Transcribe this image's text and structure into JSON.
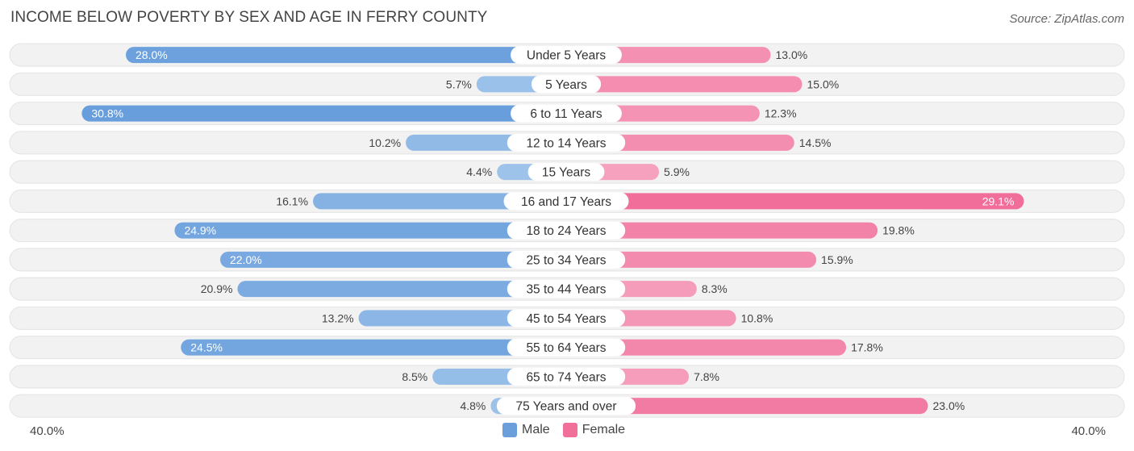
{
  "title": "INCOME BELOW POVERTY BY SEX AND AGE IN FERRY COUNTY",
  "source": "Source: ZipAtlas.com",
  "axis": {
    "left_label": "40.0%",
    "right_label": "40.0%"
  },
  "legend": {
    "male_label": "Male",
    "female_label": "Female",
    "male_color": "#6a9fdc",
    "female_color": "#f07099"
  },
  "chart_data": {
    "type": "bar",
    "orientation": "horizontal-diverging",
    "title": "INCOME BELOW POVERTY BY SEX AND AGE IN FERRY COUNTY",
    "xlim": [
      -40,
      40
    ],
    "categories": [
      "Under 5 Years",
      "5 Years",
      "6 to 11 Years",
      "12 to 14 Years",
      "15 Years",
      "16 and 17 Years",
      "18 to 24 Years",
      "25 to 34 Years",
      "35 to 44 Years",
      "45 to 54 Years",
      "55 to 64 Years",
      "65 to 74 Years",
      "75 Years and over"
    ],
    "series": [
      {
        "name": "Male",
        "values": [
          28.0,
          5.7,
          30.8,
          10.2,
          4.4,
          16.1,
          24.9,
          22.0,
          20.9,
          13.2,
          24.5,
          8.5,
          4.8
        ]
      },
      {
        "name": "Female",
        "values": [
          13.0,
          15.0,
          12.3,
          14.5,
          5.9,
          29.1,
          19.8,
          15.9,
          8.3,
          10.8,
          17.8,
          7.8,
          23.0
        ]
      }
    ],
    "value_labels": {
      "male": [
        "28.0%",
        "5.7%",
        "30.8%",
        "10.2%",
        "4.4%",
        "16.1%",
        "24.9%",
        "22.0%",
        "20.9%",
        "13.2%",
        "24.5%",
        "8.5%",
        "4.8%"
      ],
      "female": [
        "13.0%",
        "15.0%",
        "12.3%",
        "14.5%",
        "5.9%",
        "29.1%",
        "19.8%",
        "15.9%",
        "8.3%",
        "10.8%",
        "17.8%",
        "7.8%",
        "23.0%"
      ]
    }
  }
}
